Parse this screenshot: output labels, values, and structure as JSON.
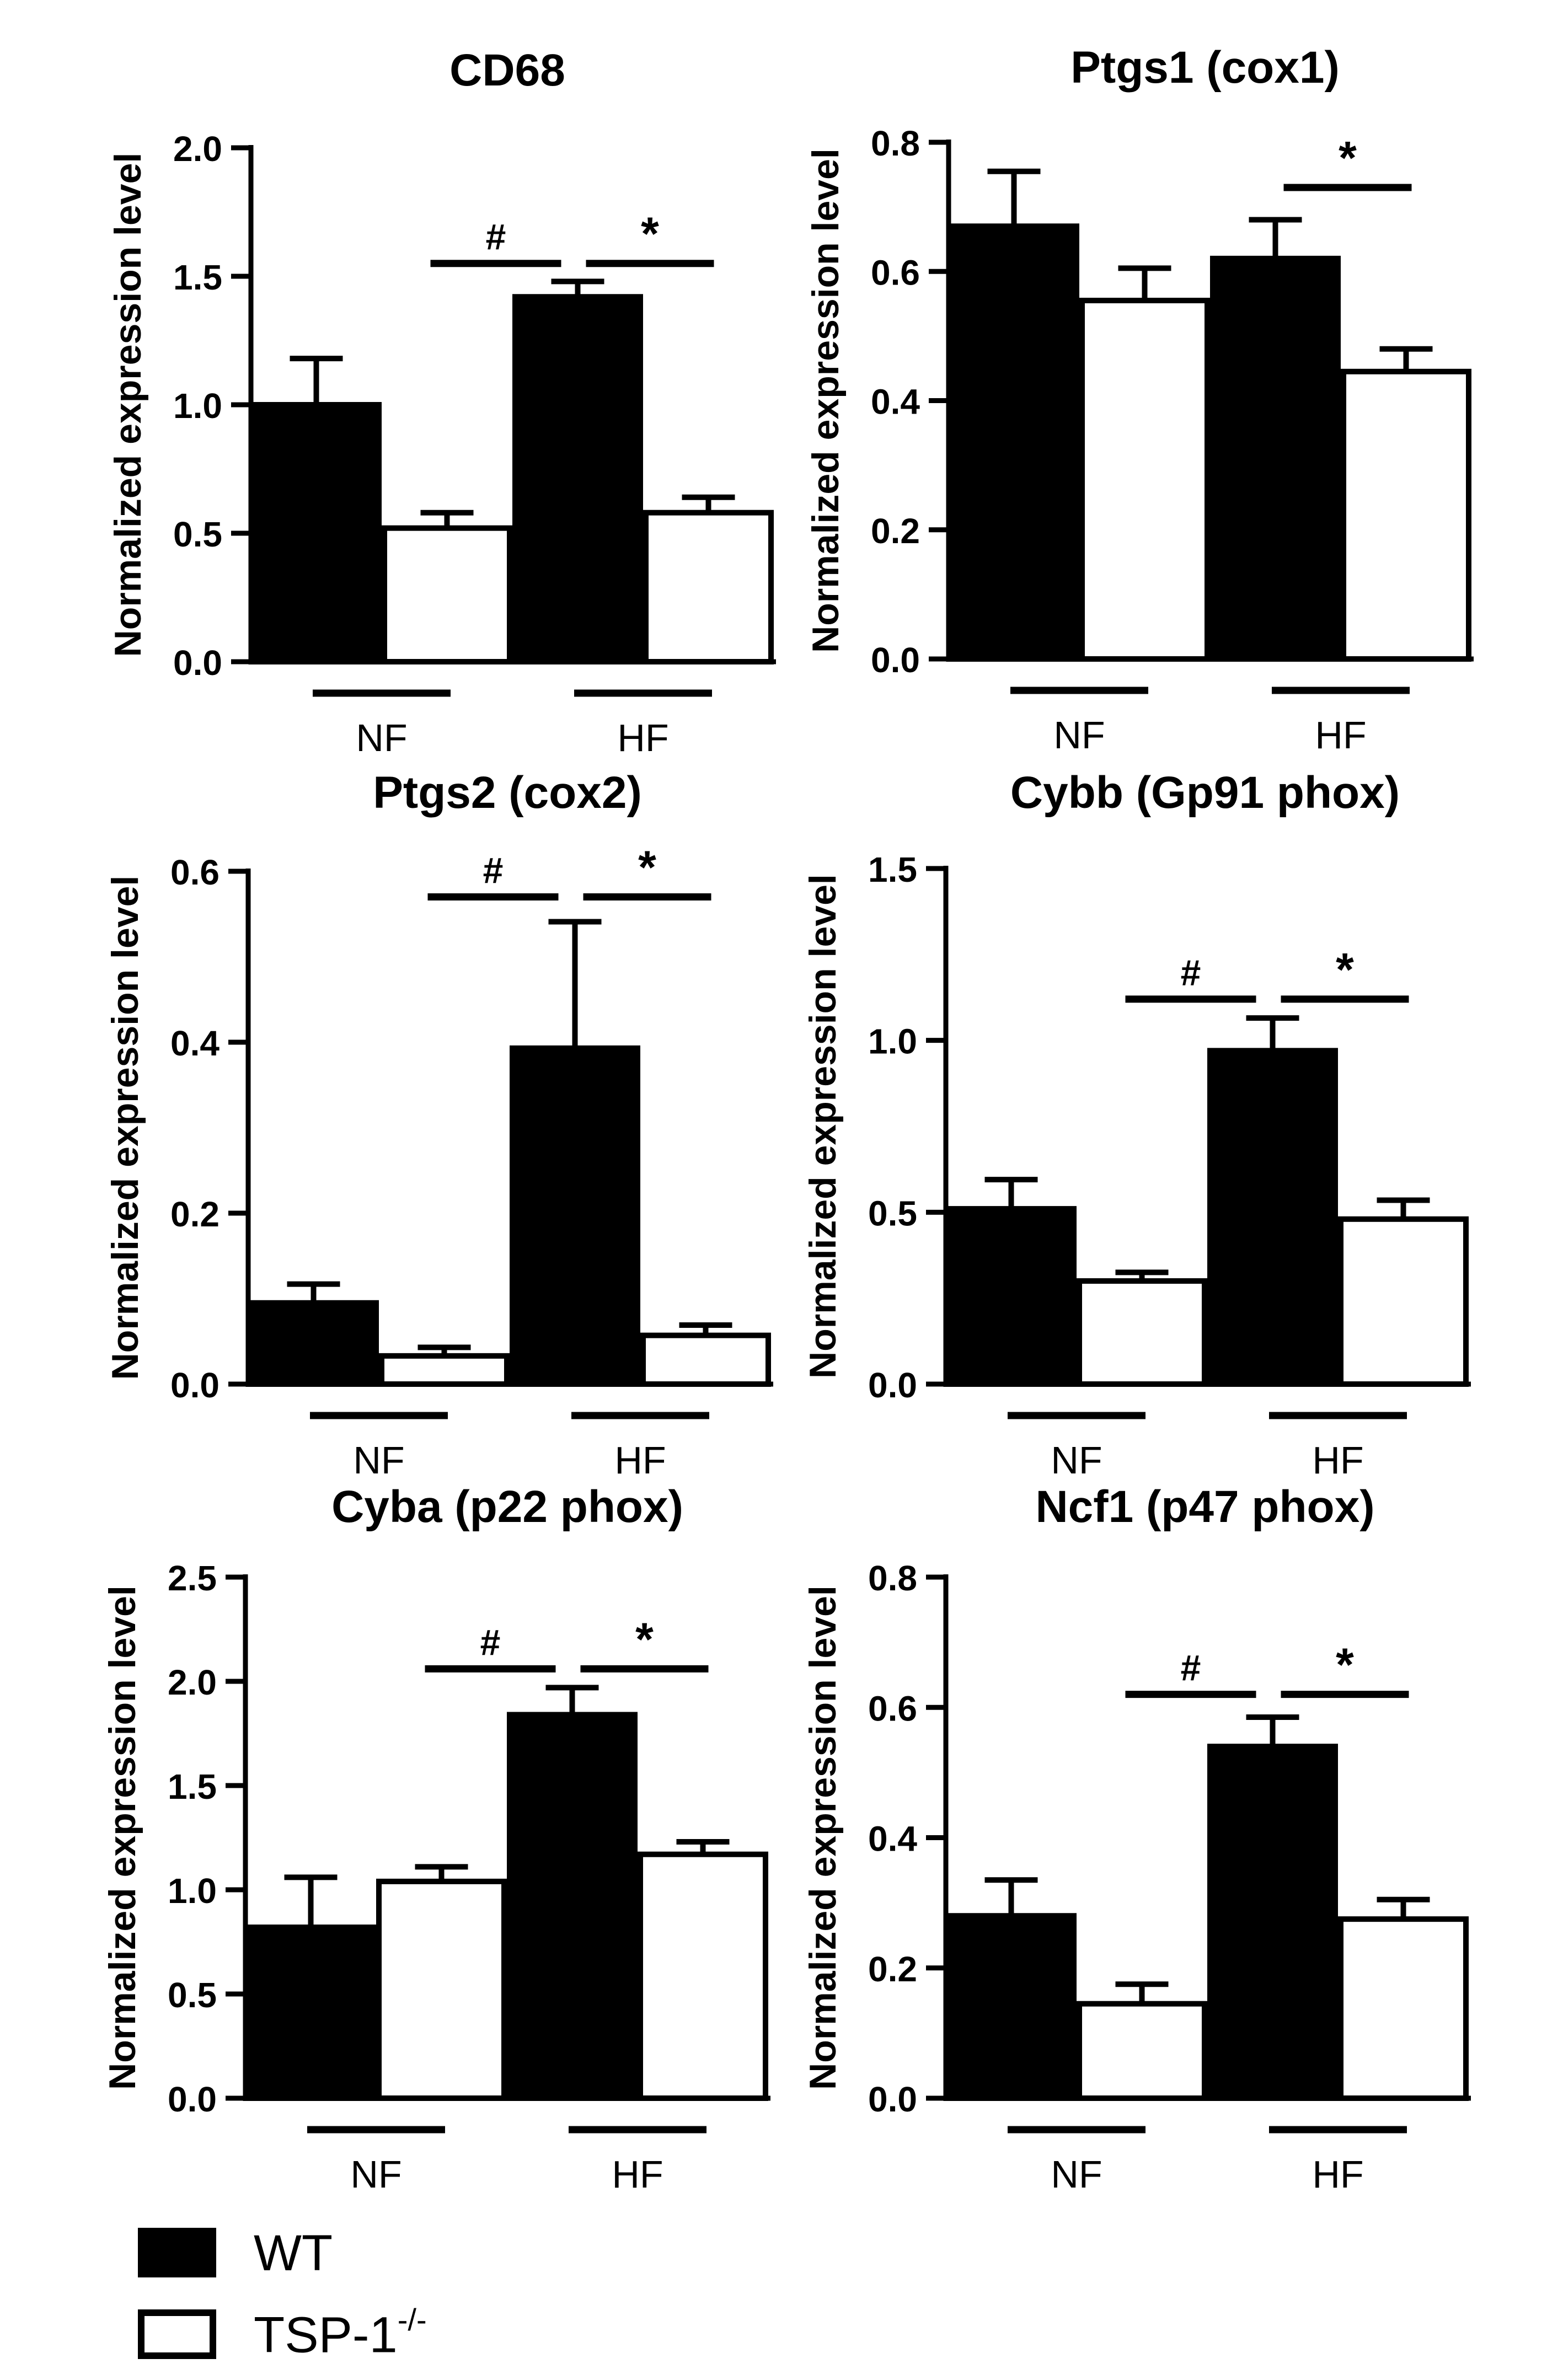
{
  "figure": {
    "legend": [
      {
        "label": "WT",
        "color": "#000000"
      },
      {
        "label": "TSP-1",
        "superscript": "-/-",
        "color": "#ffffff"
      }
    ]
  },
  "chart_data": [
    {
      "type": "bar",
      "title": "CD68",
      "ylabel": "Normalized expression level",
      "ylim": [
        0,
        2.0
      ],
      "yticks": [
        "0.0",
        "0.5",
        "1.0",
        "1.5",
        "2.0"
      ],
      "groups": [
        "NF",
        "HF"
      ],
      "series": [
        {
          "name": "WT",
          "values": [
            1.0,
            1.42
          ],
          "errors": [
            0.18,
            0.06
          ]
        },
        {
          "name": "TSP-1-/-",
          "values": [
            0.52,
            0.58
          ],
          "errors": [
            0.06,
            0.06
          ]
        }
      ],
      "annotations": [
        {
          "label": "#",
          "from": "NF-TSP",
          "to": "HF-WT",
          "level": 1.55
        },
        {
          "label": "*",
          "from": "HF-WT",
          "to": "HF-TSP",
          "level": 1.55
        }
      ]
    },
    {
      "type": "bar",
      "title": "Ptgs1 (cox1)",
      "ylabel": "Normalized expression level",
      "ylim": [
        0,
        0.8
      ],
      "yticks": [
        "0.0",
        "0.2",
        "0.4",
        "0.6",
        "0.8"
      ],
      "groups": [
        "NF",
        "HF"
      ],
      "series": [
        {
          "name": "WT",
          "values": [
            0.67,
            0.62
          ],
          "errors": [
            0.085,
            0.06
          ]
        },
        {
          "name": "TSP-1-/-",
          "values": [
            0.555,
            0.445
          ],
          "errors": [
            0.05,
            0.035
          ]
        }
      ],
      "annotations": [
        {
          "label": "*",
          "from": "HF-WT",
          "to": "HF-TSP",
          "level": 0.73
        }
      ]
    },
    {
      "type": "bar",
      "title": "Ptgs2 (cox2)",
      "ylabel": "Normalized expression level",
      "ylim": [
        0,
        0.6
      ],
      "yticks": [
        "0.0",
        "0.2",
        "0.4",
        "0.6"
      ],
      "groups": [
        "NF",
        "HF"
      ],
      "series": [
        {
          "name": "WT",
          "values": [
            0.095,
            0.393
          ],
          "errors": [
            0.022,
            0.148
          ]
        },
        {
          "name": "TSP-1-/-",
          "values": [
            0.033,
            0.057
          ],
          "errors": [
            0.01,
            0.012
          ]
        }
      ],
      "annotations": [
        {
          "label": "#",
          "from": "NF-TSP",
          "to": "HF-WT",
          "level": 0.57
        },
        {
          "label": "*",
          "from": "HF-WT",
          "to": "HF-TSP",
          "level": 0.57
        }
      ]
    },
    {
      "type": "bar",
      "title": "Cybb (Gp91 phox)",
      "ylabel": "Normalized expression level",
      "ylim": [
        0,
        1.5
      ],
      "yticks": [
        "0.0",
        "0.5",
        "1.0",
        "1.5"
      ],
      "groups": [
        "NF",
        "HF"
      ],
      "series": [
        {
          "name": "WT",
          "values": [
            0.51,
            0.97
          ],
          "errors": [
            0.085,
            0.095
          ]
        },
        {
          "name": "TSP-1-/-",
          "values": [
            0.3,
            0.48
          ],
          "errors": [
            0.025,
            0.055
          ]
        }
      ],
      "annotations": [
        {
          "label": "#",
          "from": "NF-TSP",
          "to": "HF-WT",
          "level": 1.12
        },
        {
          "label": "*",
          "from": "HF-WT",
          "to": "HF-TSP",
          "level": 1.12
        }
      ]
    },
    {
      "type": "bar",
      "title": "Cyba (p22 phox)",
      "ylabel": "Normalized expression level",
      "ylim": [
        0,
        2.5
      ],
      "yticks": [
        "0.0",
        "0.5",
        "1.0",
        "1.5",
        "2.0",
        "2.5"
      ],
      "groups": [
        "NF",
        "HF"
      ],
      "series": [
        {
          "name": "WT",
          "values": [
            0.82,
            1.84
          ],
          "errors": [
            0.24,
            0.13
          ]
        },
        {
          "name": "TSP-1-/-",
          "values": [
            1.04,
            1.17
          ],
          "errors": [
            0.07,
            0.06
          ]
        }
      ],
      "annotations": [
        {
          "label": "#",
          "from": "NF-TSP",
          "to": "HF-WT",
          "level": 2.06
        },
        {
          "label": "*",
          "from": "HF-WT",
          "to": "HF-TSP",
          "level": 2.06
        }
      ]
    },
    {
      "type": "bar",
      "title": "Ncf1 (p47 phox)",
      "ylabel": "Normalized expression level",
      "ylim": [
        0,
        0.8
      ],
      "yticks": [
        "0.0",
        "0.2",
        "0.4",
        "0.6",
        "0.8"
      ],
      "groups": [
        "NF",
        "HF"
      ],
      "series": [
        {
          "name": "WT",
          "values": [
            0.28,
            0.54
          ],
          "errors": [
            0.055,
            0.045
          ]
        },
        {
          "name": "TSP-1-/-",
          "values": [
            0.145,
            0.275
          ],
          "errors": [
            0.03,
            0.03
          ]
        }
      ],
      "annotations": [
        {
          "label": "#",
          "from": "NF-TSP",
          "to": "HF-WT",
          "level": 0.62
        },
        {
          "label": "*",
          "from": "HF-WT",
          "to": "HF-TSP",
          "level": 0.62
        }
      ]
    }
  ]
}
